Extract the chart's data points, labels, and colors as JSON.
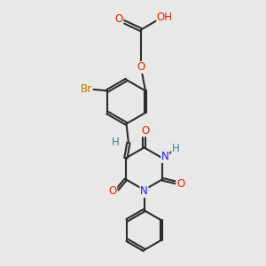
{
  "bg_color": "#e8e8e8",
  "bond_color": "#2c2c2c",
  "bond_width": 1.5,
  "atom_colors": {
    "O": "#dd2200",
    "N": "#1a1aee",
    "Br": "#bb7700",
    "H": "#338888",
    "C": "#2c2c2c"
  },
  "font_size": 8.5,
  "fig_width": 3.0,
  "fig_height": 3.0,
  "dpi": 100
}
